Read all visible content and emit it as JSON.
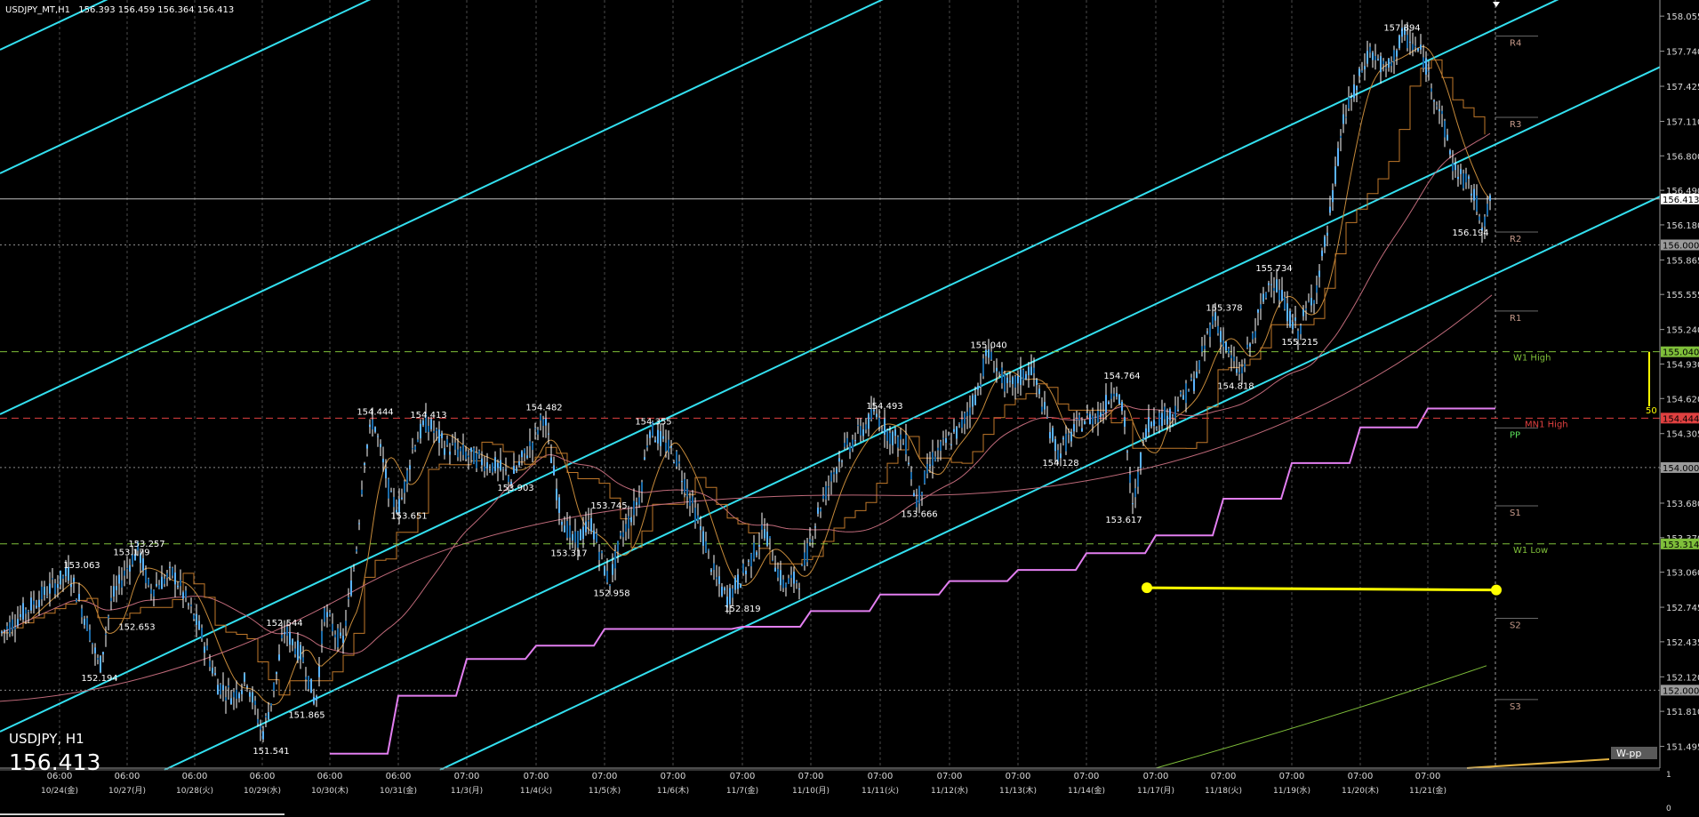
{
  "window": {
    "title": "USDJPY_MT,H1",
    "ohlc": "156.393 156.459 156.364 156.413"
  },
  "overlay": {
    "symbol_tf": "USDJPY, H1",
    "big_price": "156.413"
  },
  "colors": {
    "background": "#000000",
    "grid": "#4a4a4a",
    "candle": "#5ab4ff",
    "channel": "#33e0f0",
    "ma_fast": "#c68a3a",
    "ma_slow": "#c06a7a",
    "ichimoku": "#c0782a",
    "step_line": "#e27ef0",
    "green_line": "#7fbf3a",
    "wpp_line": "#e0b040",
    "yellow_marker": "#ffff00",
    "w1_high": "#7fbf3a",
    "w1_low": "#7fbf3a",
    "mn1_high": "#e04040",
    "pivot_labels": "#c69a8a",
    "pp_label": "#5adf5a"
  },
  "chart_data": {
    "type": "candlestick",
    "symbol": "USDJPY",
    "timeframe": "H1",
    "y_axis": {
      "min": 151.3,
      "max": 158.2,
      "tick_labels": [
        "158.055",
        "157.740",
        "157.425",
        "157.110",
        "156.800",
        "156.490",
        "156.180",
        "155.865",
        "155.555",
        "155.240",
        "154.930",
        "154.620",
        "154.305",
        "153.995",
        "153.680",
        "153.370",
        "153.060",
        "152.745",
        "152.435",
        "152.120",
        "151.810",
        "151.495"
      ],
      "right_bottom_labels": [
        "1",
        "0"
      ]
    },
    "x_axis": {
      "time_labels": [
        "06:00",
        "06:00",
        "06:00",
        "06:00",
        "06:00",
        "06:00",
        "07:00",
        "07:00",
        "07:00",
        "07:00",
        "07:00",
        "07:00",
        "07:00",
        "07:00",
        "07:00",
        "07:00",
        "07:00",
        "07:00",
        "07:00",
        "07:00",
        "07:00"
      ],
      "date_labels": [
        "10/24(金)",
        "10/27(月)",
        "10/28(火)",
        "10/29(水)",
        "10/30(木)",
        "10/31(金)",
        "11/3(月)",
        "11/4(火)",
        "11/5(水)",
        "11/6(木)",
        "11/7(金)",
        "11/10(月)",
        "11/11(火)",
        "11/12(水)",
        "11/13(木)",
        "11/14(金)",
        "11/17(月)",
        "11/18(火)",
        "11/19(水)",
        "11/20(木)",
        "11/21(金)"
      ]
    },
    "swing_labels": [
      {
        "price": 153.063,
        "label": "153.063"
      },
      {
        "price": 153.179,
        "label": "153.179"
      },
      {
        "price": 153.257,
        "label": "153.257"
      },
      {
        "price": 152.653,
        "label": "152.653"
      },
      {
        "price": 152.194,
        "label": "152.194"
      },
      {
        "price": 152.544,
        "label": "152.544"
      },
      {
        "price": 151.865,
        "label": "151.865"
      },
      {
        "price": 151.541,
        "label": "151.541"
      },
      {
        "price": 154.444,
        "label": "154.444"
      },
      {
        "price": 154.413,
        "label": "154.413"
      },
      {
        "price": 153.651,
        "label": "153.651"
      },
      {
        "price": 154.482,
        "label": "154.482"
      },
      {
        "price": 153.903,
        "label": "153.903"
      },
      {
        "price": 153.317,
        "label": "153.317"
      },
      {
        "price": 154.355,
        "label": "154.355"
      },
      {
        "price": 153.745,
        "label": "153.745"
      },
      {
        "price": 152.958,
        "label": "152.958"
      },
      {
        "price": 152.819,
        "label": "152.819"
      },
      {
        "price": 154.493,
        "label": "154.493"
      },
      {
        "price": 153.666,
        "label": "153.666"
      },
      {
        "price": 155.04,
        "label": "155.040"
      },
      {
        "price": 154.128,
        "label": "154.128"
      },
      {
        "price": 154.764,
        "label": "154.764"
      },
      {
        "price": 153.617,
        "label": "153.617"
      },
      {
        "price": 155.378,
        "label": "155.378"
      },
      {
        "price": 154.818,
        "label": "154.818"
      },
      {
        "price": 155.734,
        "label": "155.734"
      },
      {
        "price": 155.215,
        "label": "155.215"
      },
      {
        "price": 157.894,
        "label": "157.894"
      },
      {
        "price": 156.194,
        "label": "156.194"
      }
    ],
    "levels": [
      {
        "label": "W1 High",
        "price": 155.04,
        "tag": "155.040"
      },
      {
        "label": "MN1 High",
        "price": 154.444,
        "tag": "154.444"
      },
      {
        "label": "W1 Low",
        "price": 153.314,
        "tag": "153.314"
      },
      {
        "label": "",
        "price": 156.413,
        "tag": "156.413"
      },
      {
        "label": "",
        "price": 156.0,
        "tag": "156.000"
      },
      {
        "label": "",
        "price": 154.0,
        "tag": "154.000"
      },
      {
        "label": "",
        "price": 152.0,
        "tag": "152.000"
      }
    ],
    "pivots": [
      {
        "label": "R4",
        "price": 157.78
      },
      {
        "label": "R3",
        "price": 157.05
      },
      {
        "label": "R2",
        "price": 156.02
      },
      {
        "label": "R1",
        "price": 155.31
      },
      {
        "label": "PP",
        "price": 154.26
      },
      {
        "label": "S1",
        "price": 153.56
      },
      {
        "label": "S2",
        "price": 152.55
      },
      {
        "label": "S3",
        "price": 151.82
      }
    ],
    "range_marker": "50",
    "wpp_label": "W-pp"
  }
}
